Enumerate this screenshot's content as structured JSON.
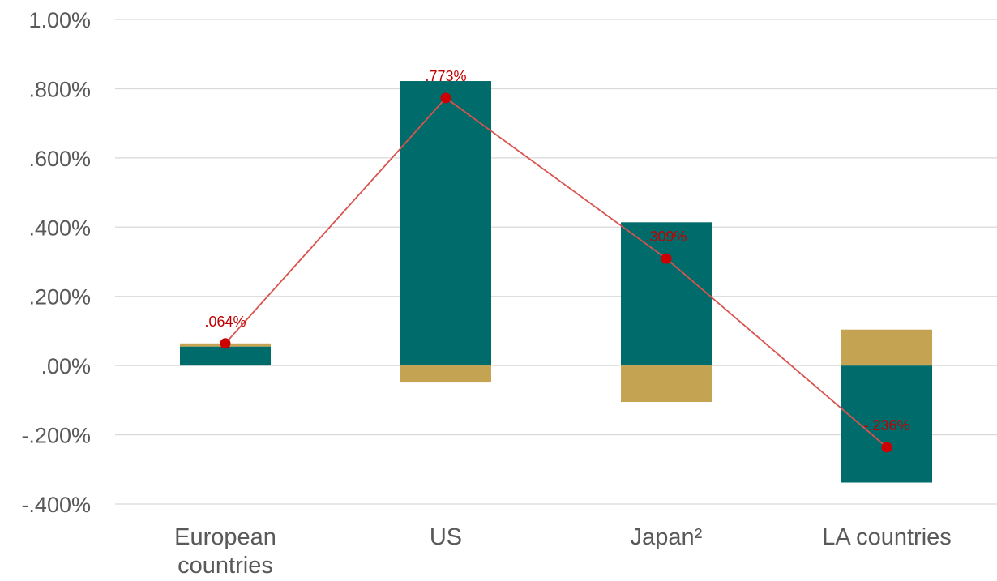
{
  "chart_data": {
    "type": "bar",
    "stacked": true,
    "categories": [
      "European countries",
      "US",
      "Japan²",
      "LA countries"
    ],
    "category_lines": [
      [
        "European",
        "countries"
      ],
      [
        "US"
      ],
      [
        "Japan²"
      ],
      [
        "LA countries"
      ]
    ],
    "series": [
      {
        "kind": "bar",
        "color": "#006b6b",
        "values": [
          0.055,
          0.822,
          0.414,
          -0.338
        ]
      },
      {
        "kind": "bar",
        "color": "#c4a352",
        "values": [
          0.009,
          -0.049,
          -0.105,
          0.104
        ]
      },
      {
        "kind": "line",
        "color": "#cc0000",
        "values": [
          0.064,
          0.773,
          0.309,
          -0.236
        ],
        "labels": [
          ".064%",
          ".773%",
          ".309%",
          "-.236%"
        ]
      }
    ],
    "ylim": [
      -0.4,
      1.0
    ],
    "yticks": [
      1.0,
      0.8,
      0.6,
      0.4,
      0.2,
      0.0,
      -0.2,
      -0.4
    ],
    "ytick_labels": [
      "1.00%",
      ".800%",
      ".600%",
      ".400%",
      ".200%",
      ".00%",
      "-.200%",
      "-.400%"
    ],
    "grid": true,
    "title": "",
    "xlabel": "",
    "ylabel": ""
  }
}
